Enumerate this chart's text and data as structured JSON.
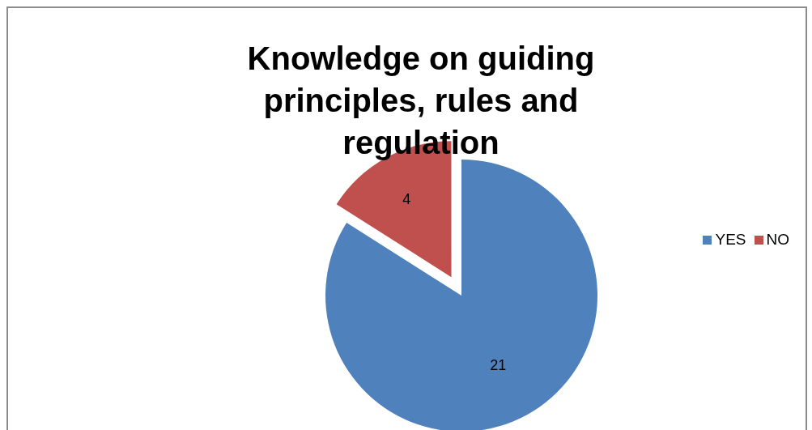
{
  "chart_data": {
    "type": "pie",
    "title": "Knowledge on guiding principles, rules and regulation",
    "categories": [
      "YES",
      "NO"
    ],
    "values": [
      21,
      4
    ],
    "colors": [
      "#4f81bd",
      "#c0504d"
    ],
    "data_labels": true,
    "legend": "right"
  }
}
